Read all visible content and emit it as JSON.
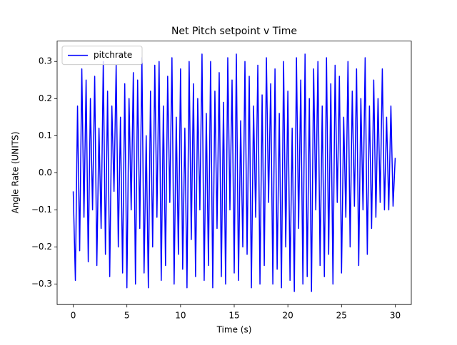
{
  "chart_data": {
    "type": "line",
    "title": "Net Pitch setpoint v Time",
    "x_label": "Time (s)",
    "y_label": "Angle Rate (UNITS)",
    "x": [
      0,
      0.2,
      0.4,
      0.6,
      0.8,
      1,
      1.2,
      1.4,
      1.6,
      1.8,
      2,
      2.2,
      2.4,
      2.6,
      2.8,
      3,
      3.2,
      3.4,
      3.6,
      3.8,
      4,
      4.2,
      4.4,
      4.6,
      4.8,
      5,
      5.2,
      5.4,
      5.6,
      5.8,
      6,
      6.2,
      6.4,
      6.6,
      6.8,
      7,
      7.2,
      7.4,
      7.6,
      7.8,
      8,
      8.2,
      8.4,
      8.6,
      8.8,
      9,
      9.2,
      9.4,
      9.6,
      9.8,
      10,
      10.2,
      10.4,
      10.6,
      10.8,
      11,
      11.2,
      11.4,
      11.6,
      11.8,
      12,
      12.2,
      12.4,
      12.6,
      12.8,
      13,
      13.2,
      13.4,
      13.6,
      13.8,
      14,
      14.2,
      14.4,
      14.6,
      14.8,
      15,
      15.2,
      15.4,
      15.6,
      15.8,
      16,
      16.2,
      16.4,
      16.6,
      16.8,
      17,
      17.2,
      17.4,
      17.6,
      17.8,
      18,
      18.2,
      18.4,
      18.6,
      18.8,
      19,
      19.2,
      19.4,
      19.6,
      19.8,
      20,
      20.2,
      20.4,
      20.6,
      20.8,
      21,
      21.2,
      21.4,
      21.6,
      21.8,
      22,
      22.2,
      22.4,
      22.6,
      22.8,
      23,
      23.2,
      23.4,
      23.6,
      23.8,
      24,
      24.2,
      24.4,
      24.6,
      24.8,
      25,
      25.2,
      25.4,
      25.6,
      25.8,
      26,
      26.2,
      26.4,
      26.6,
      26.8,
      27,
      27.2,
      27.4,
      27.6,
      27.8,
      28,
      28.2,
      28.4,
      28.6,
      28.8,
      29,
      29.2,
      29.4,
      29.6,
      29.8,
      30
    ],
    "series": [
      {
        "name": "pitchrate",
        "color": "#0000ff",
        "values": [
          -0.05,
          -0.29,
          0.18,
          -0.21,
          0.28,
          -0.12,
          0.25,
          -0.24,
          0.2,
          -0.1,
          0.26,
          -0.25,
          0.12,
          -0.15,
          0.3,
          -0.22,
          0.22,
          -0.28,
          0.18,
          -0.05,
          0.29,
          -0.2,
          0.15,
          -0.27,
          0.24,
          -0.31,
          0.2,
          -0.1,
          0.27,
          -0.3,
          0.25,
          -0.15,
          0.31,
          -0.27,
          0.1,
          -0.31,
          0.22,
          -0.2,
          0.29,
          -0.12,
          0.3,
          -0.29,
          0.18,
          -0.25,
          0.26,
          -0.08,
          0.31,
          -0.3,
          0.15,
          -0.22,
          0.28,
          -0.26,
          0.12,
          -0.31,
          0.3,
          -0.18,
          0.24,
          -0.28,
          0.2,
          -0.1,
          0.32,
          -0.29,
          0.16,
          -0.25,
          0.3,
          -0.31,
          0.22,
          -0.15,
          0.27,
          -0.28,
          0.19,
          -0.3,
          0.31,
          -0.1,
          0.25,
          -0.27,
          0.32,
          -0.29,
          0.14,
          -0.2,
          0.3,
          -0.22,
          0.26,
          -0.31,
          0.18,
          -0.12,
          0.29,
          -0.3,
          0.21,
          -0.25,
          0.31,
          -0.08,
          0.24,
          -0.3,
          0.28,
          -0.26,
          0.16,
          -0.31,
          0.3,
          -0.2,
          0.22,
          -0.29,
          0.12,
          -0.32,
          0.31,
          -0.15,
          0.25,
          -0.3,
          0.32,
          -0.28,
          0.2,
          -0.32,
          0.28,
          -0.1,
          0.3,
          -0.25,
          0.18,
          -0.28,
          0.31,
          -0.22,
          0.24,
          -0.3,
          0.29,
          -0.08,
          0.26,
          -0.27,
          0.15,
          -0.12,
          0.3,
          -0.2,
          0.22,
          -0.09,
          0.28,
          -0.25,
          0.2,
          -0.1,
          0.31,
          -0.22,
          0.18,
          -0.15,
          0.25,
          -0.12,
          0.2,
          -0.08,
          0.28,
          -0.1,
          0.15,
          -0.1,
          0.18,
          -0.09,
          0.04
        ]
      }
    ],
    "xlim": [
      -1.5,
      31.5
    ],
    "xticks": [
      0,
      5,
      10,
      15,
      20,
      25,
      30
    ],
    "ylim": [
      -0.355,
      0.355
    ],
    "yticks": [
      {
        "value": -0.3,
        "label": "−0.3"
      },
      {
        "value": -0.2,
        "label": "−0.2"
      },
      {
        "value": -0.1,
        "label": "−0.1"
      },
      {
        "value": 0,
        "label": "0.0"
      },
      0.1,
      0.2,
      0.3
    ],
    "grid": false,
    "legend": "upper left"
  }
}
